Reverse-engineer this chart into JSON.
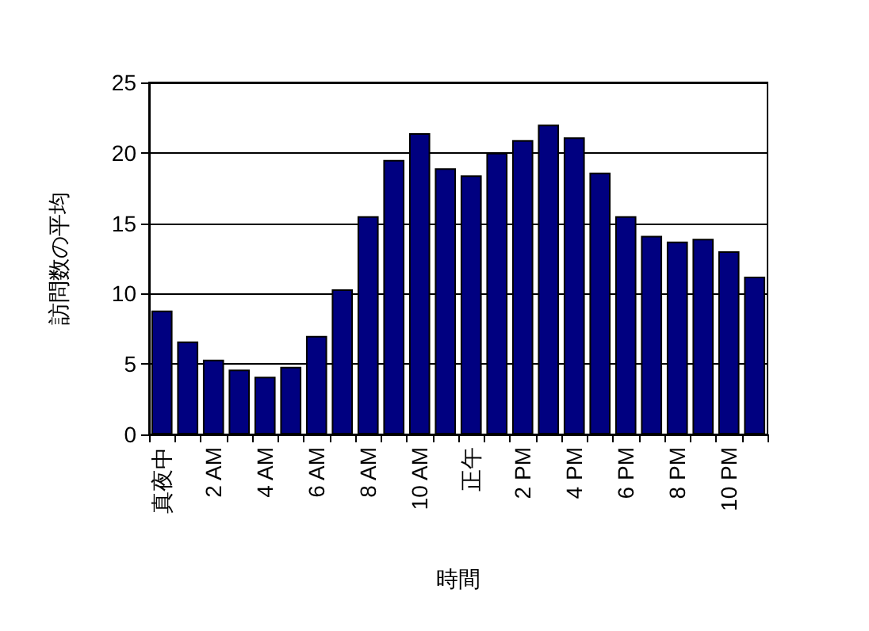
{
  "chart_data": {
    "type": "bar",
    "xlabel": "時間",
    "ylabel": "訪問数の平均",
    "categories": [
      "真夜中",
      null,
      "2 AM",
      null,
      "4 AM",
      null,
      "6 AM",
      null,
      "8 AM",
      null,
      "10 AM",
      null,
      "正午",
      null,
      "2 PM",
      null,
      "4 PM",
      null,
      "6 PM",
      null,
      "8 PM",
      null,
      "10 PM",
      null
    ],
    "values": [
      8.8,
      6.6,
      5.3,
      4.6,
      4.1,
      4.8,
      7.0,
      10.3,
      15.5,
      19.5,
      21.4,
      18.9,
      18.4,
      20.0,
      20.9,
      22.0,
      21.1,
      18.6,
      15.5,
      14.1,
      13.7,
      13.9,
      13.0,
      11.2
    ],
    "color": "#000080",
    "ylim": [
      0,
      25
    ],
    "yticks": [
      0,
      5,
      10,
      15,
      20,
      25
    ],
    "grid": "y"
  }
}
